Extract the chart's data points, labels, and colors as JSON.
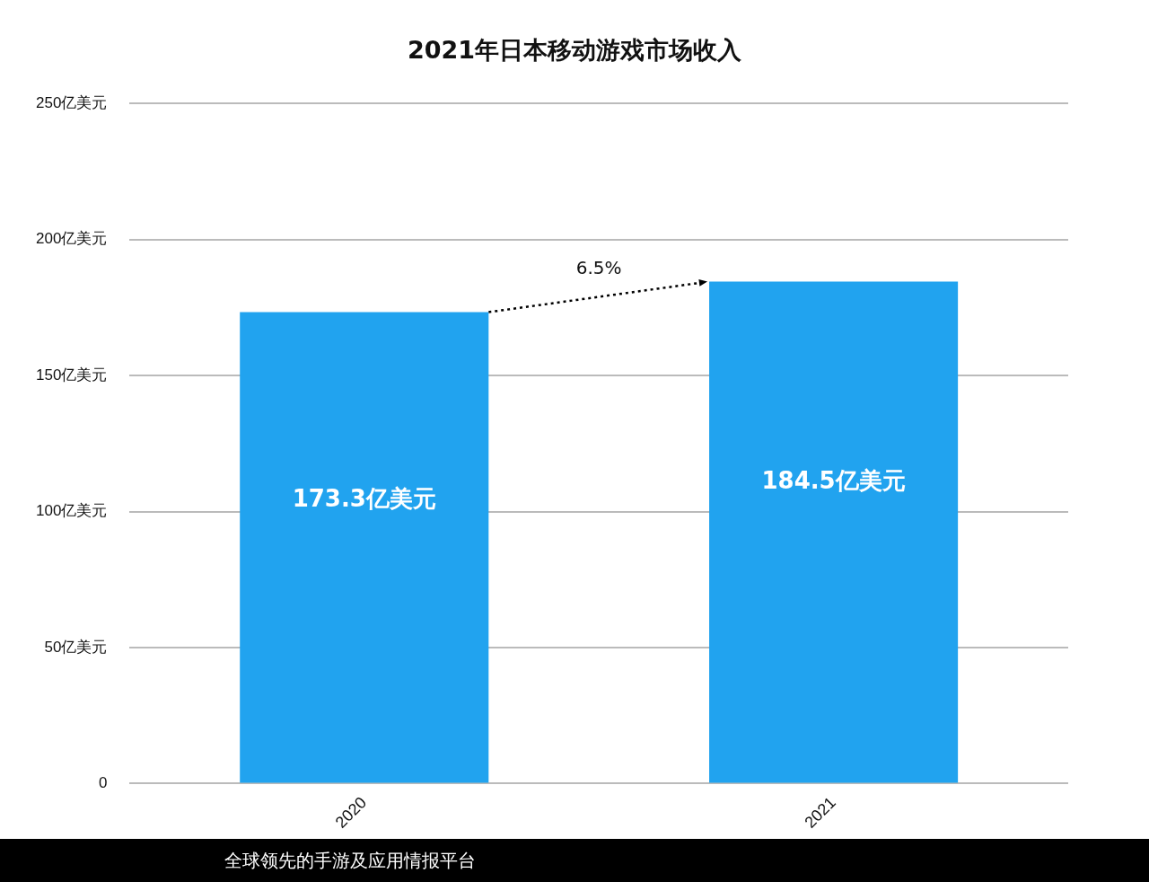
{
  "chart_data": {
    "type": "bar",
    "title": "2021年日本移动游戏市场收入",
    "categories": [
      "2020",
      "2021"
    ],
    "values": [
      173.3,
      184.5
    ],
    "value_labels": [
      "173.3亿美元",
      "184.5亿美元"
    ],
    "color": "#21a3ef",
    "ylim": [
      0,
      250
    ],
    "yticks": [
      0,
      {
        "value": 50,
        "label": "50亿美元"
      },
      {
        "value": 100,
        "label": "100亿美元"
      },
      {
        "value": 150,
        "label": "150亿美元"
      },
      {
        "value": 200,
        "label": "200亿美元"
      },
      {
        "value": 250,
        "label": "250亿美元"
      }
    ],
    "grid": "y",
    "legend": false,
    "annotations": [
      "6.5%",
      "全球领先的手游及应用情报平台"
    ]
  }
}
